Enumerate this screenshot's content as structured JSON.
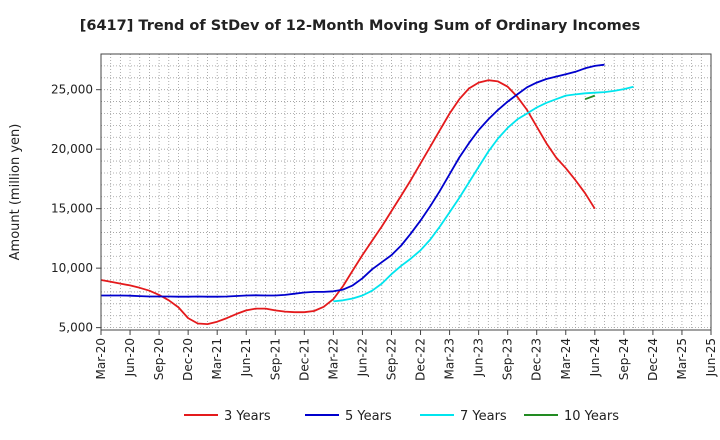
{
  "chart_data": {
    "type": "line",
    "title": "[6417]  Trend of StDev of 12-Month Moving Sum of Ordinary Incomes",
    "xlabel": "",
    "ylabel": "Amount (million yen)",
    "ylim": [
      4800,
      28000
    ],
    "y_ticks": [
      5000,
      10000,
      15000,
      20000,
      25000
    ],
    "y_tick_labels": [
      "5,000",
      "10,000",
      "15,000",
      "20,000",
      "25,000"
    ],
    "x_tick_labels": [
      "Mar-20",
      "Jun-20",
      "Sep-20",
      "Dec-20",
      "Mar-21",
      "Jun-21",
      "Sep-21",
      "Dec-21",
      "Mar-22",
      "Jun-22",
      "Sep-22",
      "Dec-22",
      "Mar-23",
      "Jun-23",
      "Sep-23",
      "Dec-23",
      "Mar-24",
      "Jun-24",
      "Sep-24",
      "Dec-24",
      "Mar-25",
      "Jun-25"
    ],
    "grid": true,
    "legend_position": "bottom",
    "series": [
      {
        "name": "3 Years",
        "color": "#e41a1c",
        "start_index": 0,
        "values": [
          9000,
          8850,
          8700,
          8550,
          8350,
          8100,
          7750,
          7300,
          6700,
          5800,
          5350,
          5300,
          5500,
          5800,
          6150,
          6450,
          6600,
          6600,
          6450,
          6350,
          6300,
          6300,
          6400,
          6750,
          7400,
          8500,
          9800,
          11100,
          12300,
          13500,
          14800,
          16100,
          17400,
          18800,
          20200,
          21600,
          23000,
          24200,
          25100,
          25600,
          25800,
          25700,
          25250,
          24400,
          23300,
          21900,
          20500,
          19300,
          18400,
          17400,
          16300,
          15000
        ]
      },
      {
        "name": "5 Years",
        "color": "#0000cd",
        "start_index": 0,
        "values": [
          7700,
          7700,
          7700,
          7680,
          7650,
          7620,
          7620,
          7620,
          7600,
          7600,
          7620,
          7600,
          7600,
          7620,
          7660,
          7700,
          7720,
          7700,
          7700,
          7750,
          7850,
          7950,
          8000,
          8000,
          8050,
          8200,
          8550,
          9150,
          9900,
          10500,
          11100,
          11900,
          12900,
          14000,
          15200,
          16500,
          17900,
          19300,
          20500,
          21600,
          22500,
          23300,
          24000,
          24600,
          25200,
          25600,
          25900,
          26100,
          26300,
          26500,
          26800,
          27000,
          27100
        ]
      },
      {
        "name": "7 Years",
        "color": "#00e5ee",
        "start_index": 24,
        "values": [
          7200,
          7300,
          7450,
          7700,
          8100,
          8700,
          9500,
          10200,
          10800,
          11500,
          12400,
          13500,
          14700,
          15900,
          17200,
          18500,
          19800,
          20900,
          21800,
          22500,
          23000,
          23500,
          23900,
          24200,
          24500,
          24600,
          24700,
          24750,
          24800,
          24900,
          25050,
          25250
        ]
      },
      {
        "name": "10 Years",
        "color": "#228b22",
        "start_index": 50,
        "values": [
          24200,
          24500
        ]
      }
    ]
  }
}
